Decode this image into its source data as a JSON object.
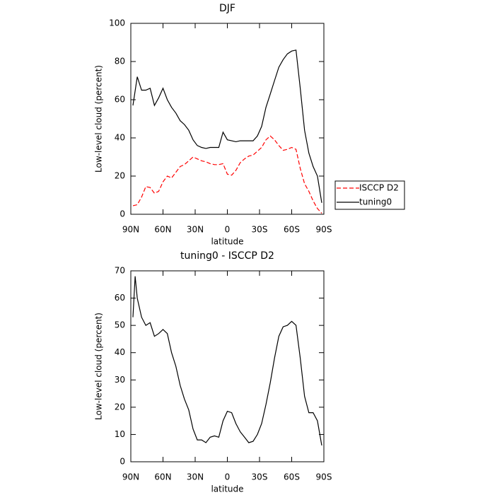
{
  "chart_data": [
    {
      "type": "line",
      "title": "DJF",
      "x_label": "latitude",
      "y_label": "Low-level cloud (percent)",
      "xlim": [
        90,
        -90
      ],
      "ylim": [
        0,
        100
      ],
      "xticks": [
        {
          "value": 90,
          "label": "90N"
        },
        {
          "value": 60,
          "label": "60N"
        },
        {
          "value": 30,
          "label": "30N"
        },
        0,
        {
          "value": -30,
          "label": "30S"
        },
        {
          "value": -60,
          "label": "60S"
        },
        {
          "value": -90,
          "label": "90S"
        }
      ],
      "yticks": [
        0,
        20,
        40,
        60,
        80,
        100
      ],
      "legend": "outside-right",
      "x": [
        88,
        84,
        80,
        76,
        72,
        68,
        64,
        60,
        56,
        52,
        48,
        44,
        40,
        36,
        32,
        28,
        24,
        20,
        16,
        12,
        8,
        4,
        0,
        -4,
        -8,
        -12,
        -16,
        -20,
        -24,
        -28,
        -32,
        -36,
        -40,
        -44,
        -48,
        -52,
        -56,
        -60,
        -64,
        -68,
        -72,
        -76,
        -80,
        -84,
        -88
      ],
      "series": [
        {
          "name": "ISCCP D2",
          "color": "#ff0000",
          "dashed": true,
          "values": [
            4.5,
            5,
            9,
            14.5,
            14,
            11,
            12,
            17,
            20,
            19,
            22,
            25,
            26,
            28,
            30,
            29,
            28,
            27.5,
            26.5,
            26,
            26,
            26.5,
            21,
            20.5,
            23,
            27,
            29,
            30.5,
            31,
            33,
            35,
            39,
            41,
            39,
            36,
            33.5,
            34,
            35,
            34,
            24,
            16,
            12,
            7,
            3,
            0.5
          ]
        },
        {
          "name": "tuning0",
          "color": "#000000",
          "dashed": false,
          "values": [
            57,
            72,
            65,
            65,
            66,
            57,
            61,
            66,
            60,
            56,
            53,
            49,
            47,
            44,
            39,
            36,
            35,
            34.5,
            35,
            35,
            35,
            43,
            39,
            38.5,
            38,
            38.5,
            38.5,
            38.5,
            38.5,
            41,
            46,
            56,
            63,
            70,
            77,
            81,
            84,
            85.5,
            86,
            66,
            44,
            32,
            25,
            20,
            6
          ]
        }
      ]
    },
    {
      "type": "line",
      "title": "tuning0 - ISCCP D2",
      "x_label": "latitude",
      "y_label": "Low-level cloud (percent)",
      "xlim": [
        90,
        -90
      ],
      "ylim": [
        0,
        70
      ],
      "xticks": [
        {
          "value": 90,
          "label": "90N"
        },
        {
          "value": 60,
          "label": "60N"
        },
        {
          "value": 30,
          "label": "30N"
        },
        0,
        {
          "value": -30,
          "label": "30S"
        },
        {
          "value": -60,
          "label": "60S"
        },
        {
          "value": -90,
          "label": "90S"
        }
      ],
      "yticks": [
        0,
        10,
        20,
        30,
        40,
        50,
        60,
        70
      ],
      "x": [
        88,
        86,
        84,
        80,
        76,
        72,
        68,
        64,
        60,
        56,
        52,
        48,
        44,
        40,
        36,
        32,
        28,
        24,
        20,
        16,
        12,
        8,
        4,
        0,
        -4,
        -8,
        -12,
        -16,
        -20,
        -24,
        -28,
        -32,
        -36,
        -40,
        -44,
        -48,
        -52,
        -56,
        -60,
        -64,
        -68,
        -72,
        -76,
        -80,
        -84,
        -88
      ],
      "color": "#000000",
      "values": [
        53,
        68,
        60,
        53,
        50,
        51,
        46,
        47,
        48.5,
        47,
        40,
        35,
        28,
        23,
        19,
        12,
        8,
        8,
        7,
        9,
        9.5,
        9,
        15,
        18.5,
        18,
        14,
        11,
        9,
        7,
        7.5,
        10,
        14,
        21,
        29,
        38,
        46,
        49.5,
        50,
        51.5,
        50,
        38,
        24,
        18,
        18,
        15,
        6
      ]
    }
  ]
}
